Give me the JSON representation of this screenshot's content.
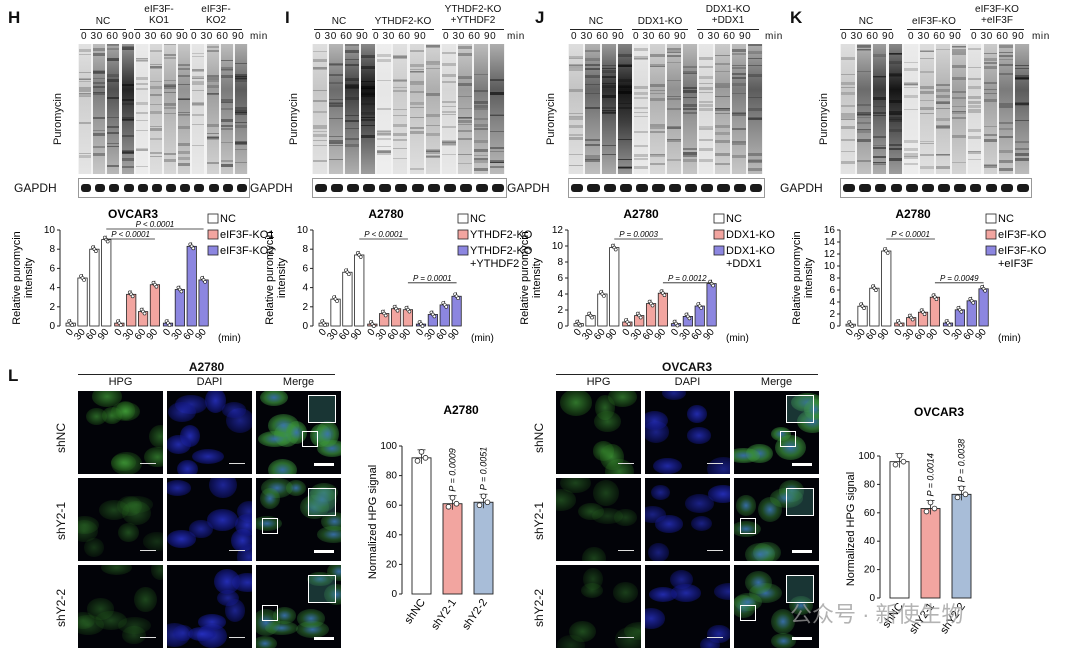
{
  "panels": {
    "H": {
      "letter": "H",
      "groups": [
        "NC",
        "eIF3F-\nKO1",
        "eIF3F-\nKO2"
      ],
      "timepoints": "0 30 60 90",
      "min_label": "min",
      "blot_label": "Puromycin",
      "gapdh_label": "GAPDH",
      "chart_title": "OVCAR3",
      "ylabel": "Relative puromycin\nintensity"
    },
    "I": {
      "letter": "I",
      "groups": [
        "NC",
        "YTHDF2-KO",
        "YTHDF2-KO\n+YTHDF2"
      ],
      "timepoints": "0 30 60 90",
      "min_label": "min",
      "blot_label": "Puromycin",
      "gapdh_label": "GAPDH",
      "chart_title": "A2780",
      "ylabel": "Relative puromycin\nintensity"
    },
    "J": {
      "letter": "J",
      "groups": [
        "NC",
        "DDX1-KO",
        "DDX1-KO\n+DDX1"
      ],
      "timepoints": "0 30 60 90",
      "min_label": "min",
      "blot_label": "Puromycin",
      "gapdh_label": "GAPDH",
      "chart_title": "A2780",
      "ylabel": "Relative puromycin\nintensity"
    },
    "K": {
      "letter": "K",
      "groups": [
        "NC",
        "eIF3F-KO",
        "eIF3F-KO\n+eIF3F"
      ],
      "timepoints": "0 30 60 90",
      "min_label": "min",
      "blot_label": "Puromycin",
      "gapdh_label": "GAPDH",
      "chart_title": "A2780",
      "ylabel": "Relative puromycin\nintensity"
    },
    "L": {
      "letter": "L",
      "left_title": "A2780",
      "right_title": "OVCAR3",
      "channels": [
        "HPG",
        "DAPI",
        "Merge"
      ],
      "rows": [
        "shNC",
        "shY2-1",
        "shY2-2"
      ]
    }
  },
  "chart_data": [
    {
      "type": "bar",
      "panel": "H",
      "title": "OVCAR3",
      "ylabel": "Relative puromycin intensity",
      "xlabel": "(min)",
      "ylim": [
        0,
        10
      ],
      "yticks": [
        0,
        2,
        4,
        6,
        8,
        10
      ],
      "timepoints": [
        "0",
        "30",
        "60",
        "90"
      ],
      "series": [
        {
          "name": "NC",
          "values": [
            0.3,
            5.0,
            8.0,
            9.0
          ]
        },
        {
          "name": "eIF3F-KO1",
          "values": [
            0.3,
            3.3,
            1.5,
            4.3
          ]
        },
        {
          "name": "eIF3F-KO2",
          "values": [
            0.3,
            3.8,
            8.3,
            4.8
          ]
        }
      ],
      "annotations": [
        {
          "text": "P < 0.0001",
          "from": [
            0,
            3
          ],
          "to": [
            1,
            3
          ],
          "level": 1
        },
        {
          "text": "P < 0.0001",
          "from": [
            0,
            3
          ],
          "to": [
            2,
            3
          ],
          "level": 2
        }
      ]
    },
    {
      "type": "bar",
      "panel": "I",
      "title": "A2780",
      "ylabel": "Relative puromycin intensity",
      "xlabel": "(min)",
      "ylim": [
        0,
        10
      ],
      "yticks": [
        0,
        2,
        4,
        6,
        8,
        10
      ],
      "timepoints": [
        "0",
        "30",
        "60",
        "90"
      ],
      "series": [
        {
          "name": "NC",
          "values": [
            0.3,
            2.8,
            5.6,
            7.4
          ]
        },
        {
          "name": "YTHDF2-KO",
          "values": [
            0.2,
            1.3,
            1.8,
            1.7
          ]
        },
        {
          "name": "YTHDF2-KO\n+YTHDF2",
          "values": [
            0.2,
            1.2,
            2.2,
            3.1
          ]
        }
      ],
      "annotations": [
        {
          "text": "P < 0.0001",
          "from": [
            0,
            3
          ],
          "to": [
            1,
            3
          ],
          "level": 1
        },
        {
          "text": "P = 0.0001",
          "from": [
            1,
            3
          ],
          "to": [
            2,
            3
          ],
          "level": 0
        }
      ]
    },
    {
      "type": "bar",
      "panel": "J",
      "title": "A2780",
      "ylabel": "Relative puromycin intensity",
      "xlabel": "(min)",
      "ylim": [
        0,
        12
      ],
      "yticks": [
        0,
        2,
        4,
        6,
        8,
        10,
        12
      ],
      "timepoints": [
        "0",
        "30",
        "60",
        "90"
      ],
      "series": [
        {
          "name": "NC",
          "values": [
            0.3,
            1.3,
            4.0,
            9.8
          ]
        },
        {
          "name": "DDX1-KO",
          "values": [
            0.5,
            1.3,
            2.8,
            4.1
          ]
        },
        {
          "name": "DDX1-KO\n+DDX1",
          "values": [
            0.3,
            1.2,
            2.5,
            5.3
          ]
        }
      ],
      "annotations": [
        {
          "text": "P = 0.0003",
          "from": [
            0,
            3
          ],
          "to": [
            1,
            3
          ],
          "level": 1
        },
        {
          "text": "P = 0.0012",
          "from": [
            1,
            3
          ],
          "to": [
            2,
            3
          ],
          "level": 0
        }
      ]
    },
    {
      "type": "bar",
      "panel": "K",
      "title": "A2780",
      "ylabel": "Relative puromycin intensity",
      "xlabel": "(min)",
      "ylim": [
        0,
        16
      ],
      "yticks": [
        0,
        2,
        4,
        6,
        8,
        10,
        12,
        14,
        16
      ],
      "timepoints": [
        "0",
        "30",
        "60",
        "90"
      ],
      "series": [
        {
          "name": "NC",
          "values": [
            0.3,
            3.3,
            6.3,
            12.5
          ]
        },
        {
          "name": "eIF3F-KO",
          "values": [
            0.5,
            1.4,
            2.3,
            4.8
          ]
        },
        {
          "name": "eIF3F-KO\n+eIF3F",
          "values": [
            0.5,
            2.7,
            4.2,
            6.2
          ]
        }
      ],
      "annotations": [
        {
          "text": "P < 0.0001",
          "from": [
            0,
            3
          ],
          "to": [
            1,
            3
          ],
          "level": 1
        },
        {
          "text": "P = 0.0049",
          "from": [
            1,
            3
          ],
          "to": [
            2,
            3
          ],
          "level": 0
        }
      ]
    },
    {
      "type": "bar",
      "panel": "L-left",
      "title": "A2780",
      "ylabel": "Normalized HPG signal",
      "ylim": [
        0,
        100
      ],
      "yticks": [
        0,
        20,
        40,
        60,
        80,
        100
      ],
      "categories": [
        "shNC",
        "shY2-1",
        "shY2-2"
      ],
      "values": [
        92,
        61,
        62
      ],
      "pvalues": [
        "",
        "P = 0.0009",
        "P = 0.0051"
      ]
    },
    {
      "type": "bar",
      "panel": "L-right",
      "title": "OVCAR3",
      "ylabel": "Normalized HPG signal",
      "ylim": [
        0,
        100
      ],
      "yticks": [
        0,
        20,
        40,
        60,
        80,
        100
      ],
      "categories": [
        "shNC",
        "shY2-1",
        "shY2-2"
      ],
      "values": [
        96,
        63,
        73
      ],
      "pvalues": [
        "",
        "P = 0.0014",
        "P = 0.0038"
      ]
    }
  ],
  "colors": {
    "nc": "#ffffff",
    "ko": "#f2a5a0",
    "rescue": "#8c86e0",
    "shy22": "#a8bdd8"
  },
  "watermark": "公众号 · 新使生物"
}
